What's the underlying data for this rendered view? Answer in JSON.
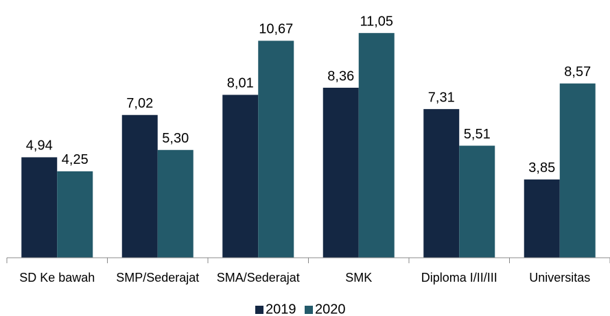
{
  "chart_data": {
    "type": "bar",
    "categories": [
      "SD Ke bawah",
      "SMP/Sederajat",
      "SMA/Sederajat",
      "SMK",
      "Diploma I/II/III",
      "Universitas"
    ],
    "series": [
      {
        "name": "2019",
        "color": "#142743",
        "values": [
          4.94,
          7.02,
          8.01,
          8.36,
          7.31,
          3.85
        ],
        "value_labels": [
          "4,94",
          "7,02",
          "8,01",
          "8,36",
          "7,31",
          "3,85"
        ]
      },
      {
        "name": "2020",
        "color": "#235a6a",
        "values": [
          4.25,
          5.3,
          10.67,
          11.05,
          5.51,
          8.57
        ],
        "value_labels": [
          "4,25",
          "5,30",
          "10,67",
          "11,05",
          "5,51",
          "8,57"
        ]
      }
    ],
    "ylim": [
      0,
      12
    ],
    "legend": "bottom"
  }
}
